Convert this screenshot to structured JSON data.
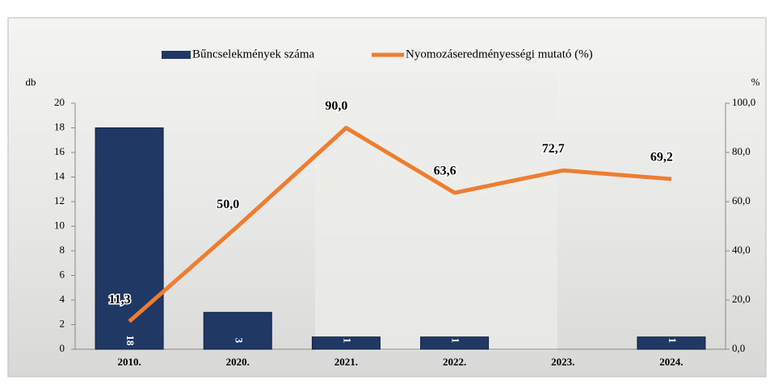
{
  "chart_data": {
    "type": "bar_line",
    "categories": [
      "2010.",
      "2020.",
      "2021.",
      "2022.",
      "2023.",
      "2024."
    ],
    "series": [
      {
        "name": "Bűncselekmények száma",
        "type": "bar",
        "color": "#1f3864",
        "values": [
          18,
          3,
          1,
          1,
          null,
          1
        ]
      },
      {
        "name": "Nyomozáseredményességi mutató (%)",
        "type": "line",
        "axis": "y2",
        "color": "#ed7d31",
        "values": [
          11.3,
          50.0,
          90.0,
          63.6,
          72.7,
          69.2
        ],
        "value_labels": [
          "11,3",
          "50,0",
          "90,0",
          "63,6",
          "72,7",
          "69,2"
        ]
      }
    ],
    "ylabel": "db",
    "y2label": "%",
    "ylim": [
      0,
      20
    ],
    "yticks": [
      0,
      2,
      4,
      6,
      8,
      10,
      12,
      14,
      16,
      18,
      20
    ],
    "y2lim": [
      0,
      100
    ],
    "y2ticks": [
      {
        "value": 0,
        "label": "0,0"
      },
      {
        "value": 20,
        "label": "20,0"
      },
      {
        "value": 40,
        "label": "40,0"
      },
      {
        "value": 60,
        "label": "60,0"
      },
      {
        "value": 80,
        "label": "80,0"
      },
      {
        "value": 100,
        "label": "100,0"
      }
    ],
    "legend": "top"
  }
}
